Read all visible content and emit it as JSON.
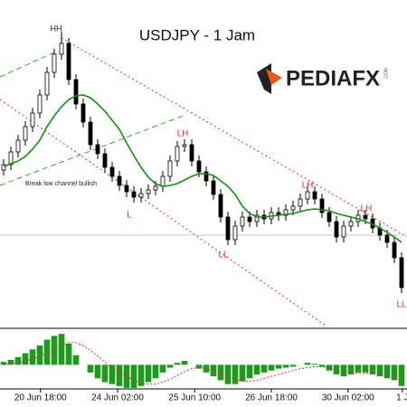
{
  "chart_data": {
    "type": "candlestick",
    "title": "USDJPY - 1 Jam",
    "logo": {
      "name": "PEDIAFX",
      "suffix": ".COM"
    },
    "open": [
      172,
      178,
      192,
      205,
      220,
      235,
      255,
      280,
      300,
      312,
      272,
      245,
      225,
      200,
      190,
      175,
      165,
      155,
      148,
      142,
      146,
      150,
      154,
      165,
      182,
      198,
      200,
      182,
      170,
      160,
      145,
      120,
      95,
      110,
      120,
      115,
      122,
      118,
      125,
      122,
      128,
      132,
      140,
      148,
      140,
      125,
      115,
      98,
      110,
      115,
      122,
      118,
      108,
      100,
      92,
      75
    ],
    "high": [
      184,
      198,
      211,
      226,
      241,
      261,
      286,
      306,
      325,
      318,
      278,
      251,
      231,
      206,
      196,
      181,
      171,
      161,
      154,
      152,
      156,
      160,
      171,
      188,
      204,
      206,
      206,
      188,
      176,
      166,
      151,
      126,
      116,
      126,
      126,
      128,
      128,
      131,
      131,
      134,
      138,
      146,
      154,
      154,
      146,
      131,
      121,
      116,
      121,
      128,
      128,
      124,
      114,
      106,
      98,
      81
    ],
    "low": [
      166,
      172,
      186,
      199,
      214,
      229,
      249,
      274,
      294,
      266,
      239,
      219,
      194,
      184,
      169,
      159,
      149,
      142,
      136,
      136,
      140,
      144,
      148,
      159,
      176,
      192,
      176,
      164,
      154,
      139,
      114,
      89,
      89,
      104,
      109,
      109,
      112,
      112,
      116,
      116,
      122,
      126,
      134,
      134,
      119,
      109,
      92,
      92,
      104,
      109,
      112,
      102,
      94,
      86,
      69,
      36
    ],
    "close": [
      178,
      192,
      205,
      220,
      235,
      255,
      280,
      300,
      312,
      272,
      245,
      225,
      200,
      190,
      175,
      165,
      155,
      148,
      142,
      146,
      150,
      154,
      165,
      182,
      198,
      200,
      182,
      170,
      160,
      145,
      120,
      95,
      110,
      120,
      115,
      122,
      118,
      125,
      122,
      128,
      132,
      140,
      148,
      140,
      125,
      115,
      98,
      110,
      115,
      122,
      118,
      108,
      100,
      92,
      75,
      42
    ],
    "ma": {
      "color": "#1a8a1a",
      "values": [
        176,
        179,
        182,
        187,
        195,
        205,
        220,
        232,
        242,
        250,
        254,
        255,
        252,
        245,
        237,
        227,
        217,
        202,
        188,
        175,
        164,
        157,
        154,
        155,
        157,
        161,
        165,
        168,
        168,
        166,
        160,
        154,
        145,
        132,
        124,
        120,
        120,
        121,
        122,
        123,
        124,
        126,
        128,
        129,
        128,
        127,
        124,
        122,
        120,
        118,
        115,
        112,
        108,
        103,
        98,
        92
      ]
    },
    "ylim": [
      0,
      360
    ],
    "xticks": [
      {
        "value": 5.1,
        "label": "20 Jun 18:00"
      },
      {
        "value": 15.75,
        "label": "24 Jun 02:00"
      },
      {
        "value": 26.4,
        "label": "25 Jun 10:00"
      },
      {
        "value": 37,
        "label": "26 Jun 18:00"
      },
      {
        "value": 47.6,
        "label": "30 Jun 02:00"
      },
      {
        "value": 55.1,
        "label": "1 J"
      }
    ],
    "annotations": [
      "HH",
      "LH",
      "LH",
      "LH",
      "LL",
      "LL",
      "L",
      "Break low channel bullish"
    ],
    "macd": {
      "ylim": [
        -25,
        35
      ],
      "histogram": {
        "color": "#1f9a1f",
        "values": [
          3,
          5,
          8,
          12,
          16,
          20,
          26,
          30,
          32,
          22,
          10,
          0,
          -8,
          -14,
          -18,
          -20,
          -22,
          -24,
          -24,
          -22,
          -18,
          -14,
          -8,
          -3,
          2,
          4,
          0,
          -4,
          -8,
          -12,
          -16,
          -20,
          -20,
          -17,
          -14,
          -10,
          -8,
          -6,
          -4,
          -3,
          -2,
          0,
          2,
          1,
          -2,
          -6,
          -10,
          -12,
          -10,
          -8,
          -8,
          -10,
          -12,
          -14,
          -16,
          -22
        ]
      },
      "signal": {
        "color": "#e03030",
        "values": [
          0,
          1,
          2,
          4,
          6,
          9,
          12,
          16,
          20,
          23,
          23,
          20,
          15,
          9,
          3,
          -3,
          -8,
          -12,
          -16,
          -19,
          -20,
          -20,
          -18,
          -15,
          -11,
          -7,
          -4,
          -3,
          -4,
          -6,
          -9,
          -12,
          -15,
          -17,
          -17,
          -16,
          -14,
          -12,
          -10,
          -8,
          -6,
          -4,
          -3,
          -2,
          -2,
          -3,
          -5,
          -7,
          -8,
          -9,
          -9,
          -9,
          -10,
          -11,
          -12,
          -14
        ]
      }
    }
  }
}
